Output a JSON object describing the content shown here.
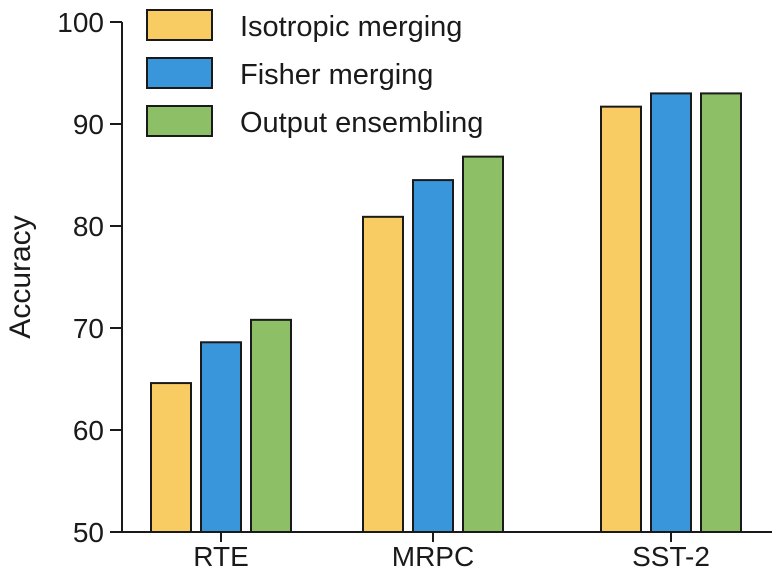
{
  "chart_data": {
    "type": "bar",
    "title": "",
    "xlabel": "",
    "ylabel": "Accuracy",
    "ylim": [
      50,
      100
    ],
    "yticks": [
      50,
      60,
      70,
      80,
      90,
      100
    ],
    "categories": [
      "RTE",
      "MRPC",
      "SST-2"
    ],
    "series": [
      {
        "name": "Isotropic merging",
        "color": "#F9CC63",
        "values": [
          64.6,
          80.9,
          91.7
        ]
      },
      {
        "name": "Fisher merging",
        "color": "#3A96DB",
        "values": [
          68.6,
          84.5,
          93.0
        ]
      },
      {
        "name": "Output ensembling",
        "color": "#8DC066",
        "values": [
          70.8,
          86.8,
          93.0
        ]
      }
    ],
    "legend_position": "top-left"
  }
}
